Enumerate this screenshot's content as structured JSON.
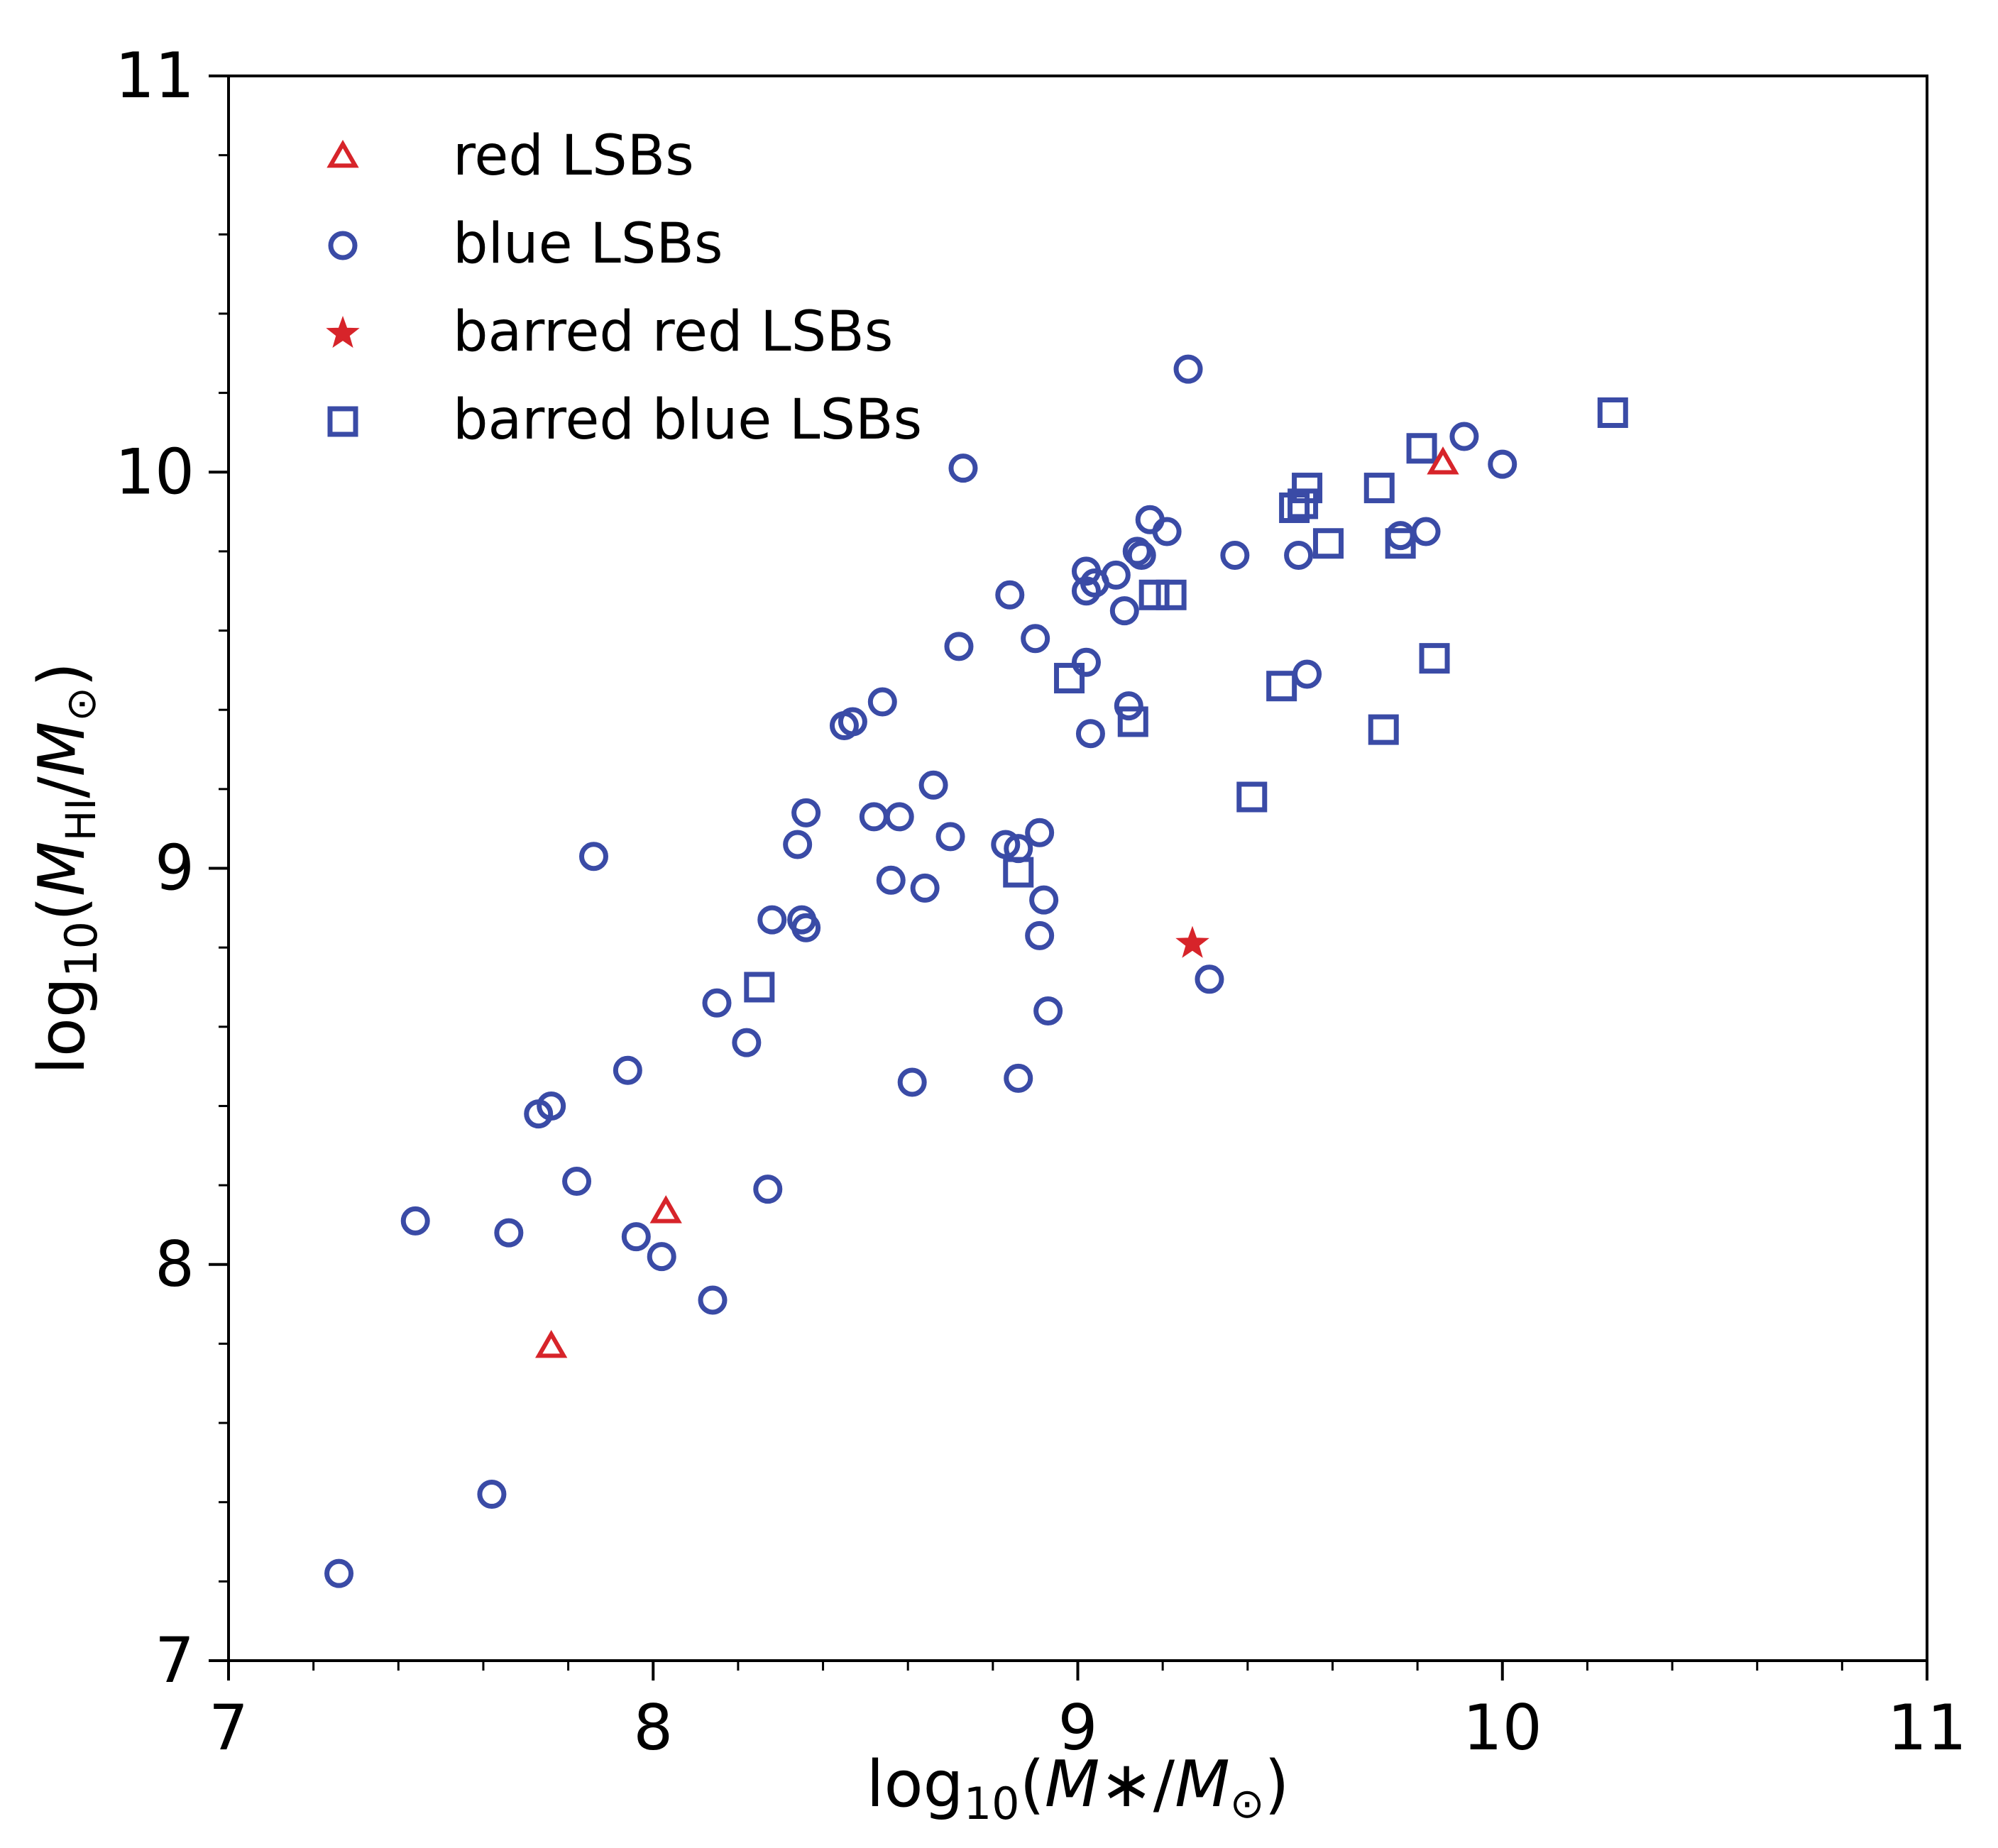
{
  "chart_data": {
    "type": "scatter",
    "xlabel": "log10(M*/M⊙)",
    "ylabel": "log10(MHI/M⊙)",
    "xlim": [
      7,
      11
    ],
    "ylim": [
      7,
      11
    ],
    "xticks": [
      7,
      8,
      9,
      10,
      11
    ],
    "yticks": [
      7,
      8,
      9,
      10,
      11
    ],
    "grid": false,
    "legend_position": "top-left",
    "series": [
      {
        "name": "red LSBs",
        "marker": "triangle",
        "color": "#d7242a",
        "points": [
          [
            7.76,
            7.79
          ],
          [
            8.03,
            8.13
          ],
          [
            9.86,
            10.02
          ]
        ]
      },
      {
        "name": "blue LSBs",
        "marker": "circle",
        "color": "#3a4ba6",
        "points": [
          [
            7.26,
            7.22
          ],
          [
            7.62,
            7.42
          ],
          [
            7.44,
            8.11
          ],
          [
            7.66,
            8.08
          ],
          [
            7.73,
            8.38
          ],
          [
            7.76,
            8.4
          ],
          [
            7.82,
            8.21
          ],
          [
            7.86,
            9.03
          ],
          [
            7.94,
            8.49
          ],
          [
            7.96,
            8.07
          ],
          [
            8.02,
            8.02
          ],
          [
            8.14,
            7.91
          ],
          [
            8.15,
            8.66
          ],
          [
            8.22,
            8.56
          ],
          [
            8.27,
            8.19
          ],
          [
            8.28,
            8.87
          ],
          [
            8.34,
            9.06
          ],
          [
            8.35,
            8.87
          ],
          [
            8.36,
            8.85
          ],
          [
            8.36,
            9.14
          ],
          [
            8.45,
            9.36
          ],
          [
            8.47,
            9.37
          ],
          [
            8.52,
            9.13
          ],
          [
            8.54,
            9.42
          ],
          [
            8.56,
            8.97
          ],
          [
            8.58,
            9.13
          ],
          [
            8.61,
            8.46
          ],
          [
            8.64,
            8.95
          ],
          [
            8.66,
            9.21
          ],
          [
            8.7,
            9.08
          ],
          [
            8.72,
            9.56
          ],
          [
            8.73,
            10.01
          ],
          [
            8.83,
            9.06
          ],
          [
            8.84,
            9.69
          ],
          [
            8.86,
            9.05
          ],
          [
            8.86,
            8.47
          ],
          [
            8.9,
            9.58
          ],
          [
            8.91,
            9.09
          ],
          [
            8.91,
            8.83
          ],
          [
            8.92,
            8.92
          ],
          [
            8.93,
            8.64
          ],
          [
            9.02,
            9.52
          ],
          [
            9.02,
            9.75
          ],
          [
            9.02,
            9.7
          ],
          [
            9.03,
            9.34
          ],
          [
            9.04,
            9.72
          ],
          [
            9.09,
            9.74
          ],
          [
            9.11,
            9.65
          ],
          [
            9.12,
            9.41
          ],
          [
            9.14,
            9.8
          ],
          [
            9.15,
            9.79
          ],
          [
            9.17,
            9.88
          ],
          [
            9.21,
            9.85
          ],
          [
            9.26,
            10.26
          ],
          [
            9.31,
            8.72
          ],
          [
            9.37,
            9.79
          ],
          [
            9.52,
            9.79
          ],
          [
            9.54,
            9.49
          ],
          [
            9.76,
            9.84
          ],
          [
            9.82,
            9.85
          ],
          [
            9.91,
            10.09
          ],
          [
            10.0,
            10.02
          ]
        ]
      },
      {
        "name": "barred red LSBs",
        "marker": "star",
        "color": "#d7242a",
        "points": [
          [
            9.27,
            8.81
          ]
        ]
      },
      {
        "name": "barred blue LSBs",
        "marker": "square",
        "color": "#3a4ba6",
        "points": [
          [
            8.25,
            8.7
          ],
          [
            8.86,
            8.99
          ],
          [
            8.98,
            9.48
          ],
          [
            9.13,
            9.37
          ],
          [
            9.18,
            9.69
          ],
          [
            9.22,
            9.69
          ],
          [
            9.41,
            9.18
          ],
          [
            9.48,
            9.46
          ],
          [
            9.51,
            9.91
          ],
          [
            9.53,
            9.92
          ],
          [
            9.54,
            9.96
          ],
          [
            9.59,
            9.82
          ],
          [
            9.71,
            9.96
          ],
          [
            9.72,
            9.35
          ],
          [
            9.76,
            9.82
          ],
          [
            9.81,
            10.06
          ],
          [
            9.84,
            9.53
          ],
          [
            10.26,
            10.15
          ]
        ]
      }
    ]
  }
}
